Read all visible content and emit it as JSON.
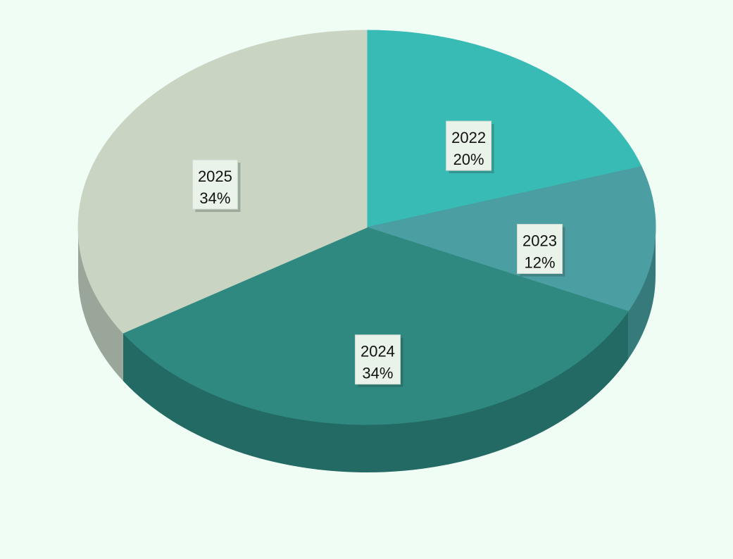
{
  "chart_data": {
    "type": "pie",
    "style": "3d",
    "start": "top",
    "direction": "clockwise",
    "slices": [
      {
        "label": "2022",
        "value": 20,
        "percent_label": "20%",
        "color": "#38bbb4",
        "side_color": "#2a8f8a"
      },
      {
        "label": "2023",
        "value": 12,
        "percent_label": "12%",
        "color": "#4b9ea1",
        "side_color": "#377a7c"
      },
      {
        "label": "2024",
        "value": 34,
        "percent_label": "34%",
        "color": "#2f8980",
        "side_color": "#236a64"
      },
      {
        "label": "2025",
        "value": 34,
        "percent_label": "34%",
        "color": "#c9d5c2",
        "side_color": "#9aa69a"
      }
    ],
    "title": "",
    "legend": "none"
  }
}
